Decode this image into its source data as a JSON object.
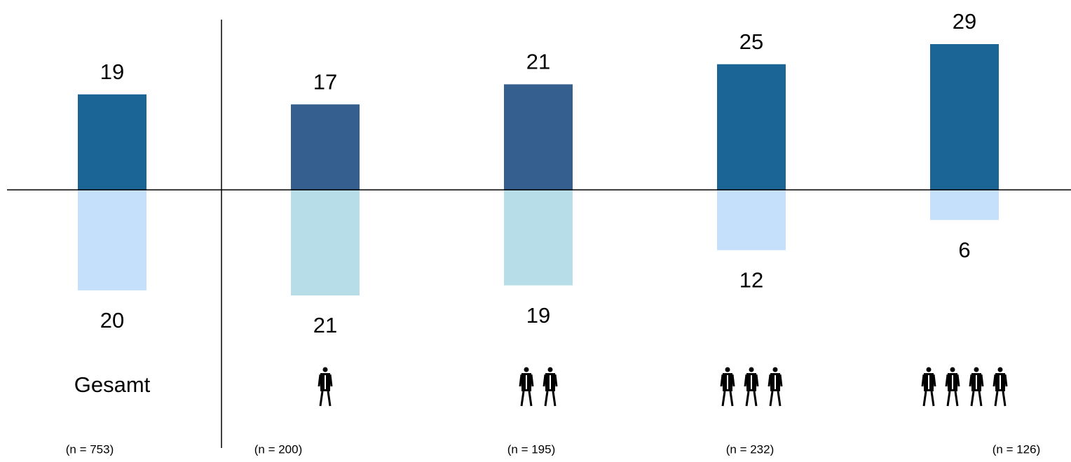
{
  "chart_data": {
    "type": "diverging-bar",
    "categories": [
      "Gesamt",
      null,
      null,
      null,
      null
    ],
    "person_icons": [
      0,
      1,
      2,
      3,
      4
    ],
    "sample_sizes": [
      "(n = 753)",
      "(n = 200)",
      "(n = 195)",
      "(n = 232)",
      "(n = 126)"
    ],
    "series": [
      {
        "direction": "up",
        "values": [
          19,
          17,
          21,
          25,
          29
        ],
        "colors": [
          "#1a6496",
          "#355f8e",
          "#355f8e",
          "#1a6496",
          "#1a6496"
        ]
      },
      {
        "direction": "down",
        "values": [
          20,
          21,
          19,
          12,
          6
        ],
        "colors": [
          "#c5e0fb",
          "#b7dde8",
          "#b7dde8",
          "#c5e0fb",
          "#c5e0fb"
        ]
      }
    ],
    "ylim": [
      -21,
      29
    ]
  }
}
